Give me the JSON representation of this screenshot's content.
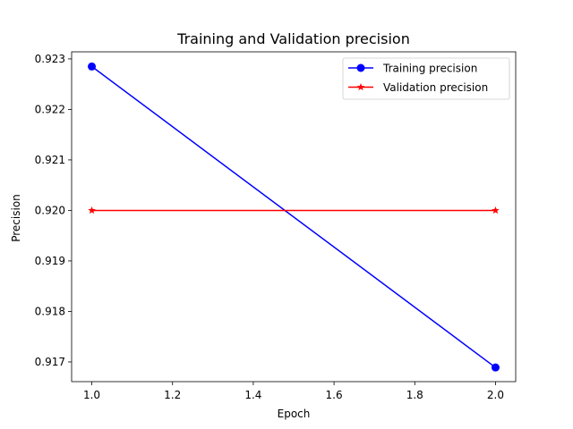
{
  "chart_data": {
    "type": "line",
    "title": "Training and Validation precision",
    "xlabel": "Epoch",
    "ylabel": "Precision",
    "xlim": [
      0.95,
      2.05
    ],
    "ylim": [
      0.91661,
      0.92314
    ],
    "x_ticks": [
      1.0,
      1.2,
      1.4,
      1.6,
      1.8,
      2.0
    ],
    "y_ticks": [
      0.917,
      0.918,
      0.919,
      0.92,
      0.921,
      0.922,
      0.923
    ],
    "x": [
      1.0,
      2.0
    ],
    "series": [
      {
        "name": "Training precision",
        "values": [
          0.92285,
          0.91689
        ],
        "color": "#0000ff",
        "marker": "circle"
      },
      {
        "name": "Validation precision",
        "values": [
          0.92,
          0.92
        ],
        "color": "#ff0000",
        "marker": "star"
      }
    ],
    "grid": false,
    "legend_position": "upper right"
  }
}
